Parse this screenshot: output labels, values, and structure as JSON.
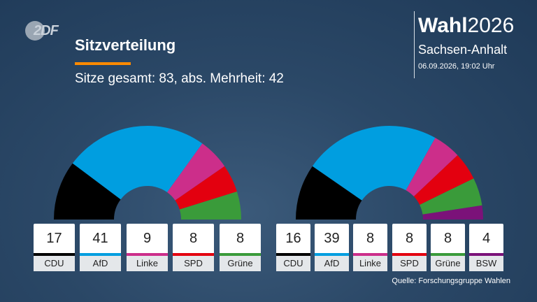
{
  "header": {
    "logo_text": "2DF",
    "title": "Sitzverteilung",
    "subtitle": "Sitze gesamt: 83, abs. Mehrheit: 42"
  },
  "brand": {
    "title_bold": "Wahl",
    "title_year": "2026",
    "region": "Sachsen-Anhalt",
    "datetime": "06.09.2026, 19:02 Uhr"
  },
  "footer": {
    "source": "Quelle: Forschungsgruppe Wahlen"
  },
  "colors": {
    "CDU": "#000000",
    "AfD": "#009ee0",
    "Linke": "#cc2e8a",
    "SPD": "#e3000f",
    "Grüne": "#3a9b3a",
    "BSW": "#7b1279",
    "accent": "#ff8a00"
  },
  "chart_data": [
    {
      "type": "pie",
      "variant": "semicircle-donut",
      "total": 83,
      "categories": [
        "CDU",
        "AfD",
        "Linke",
        "SPD",
        "Grüne"
      ],
      "values": [
        17,
        41,
        9,
        8,
        8
      ]
    },
    {
      "type": "pie",
      "variant": "semicircle-donut",
      "total": 83,
      "categories": [
        "CDU",
        "AfD",
        "Linke",
        "SPD",
        "Grüne",
        "BSW"
      ],
      "values": [
        16,
        39,
        8,
        8,
        8,
        4
      ]
    }
  ]
}
